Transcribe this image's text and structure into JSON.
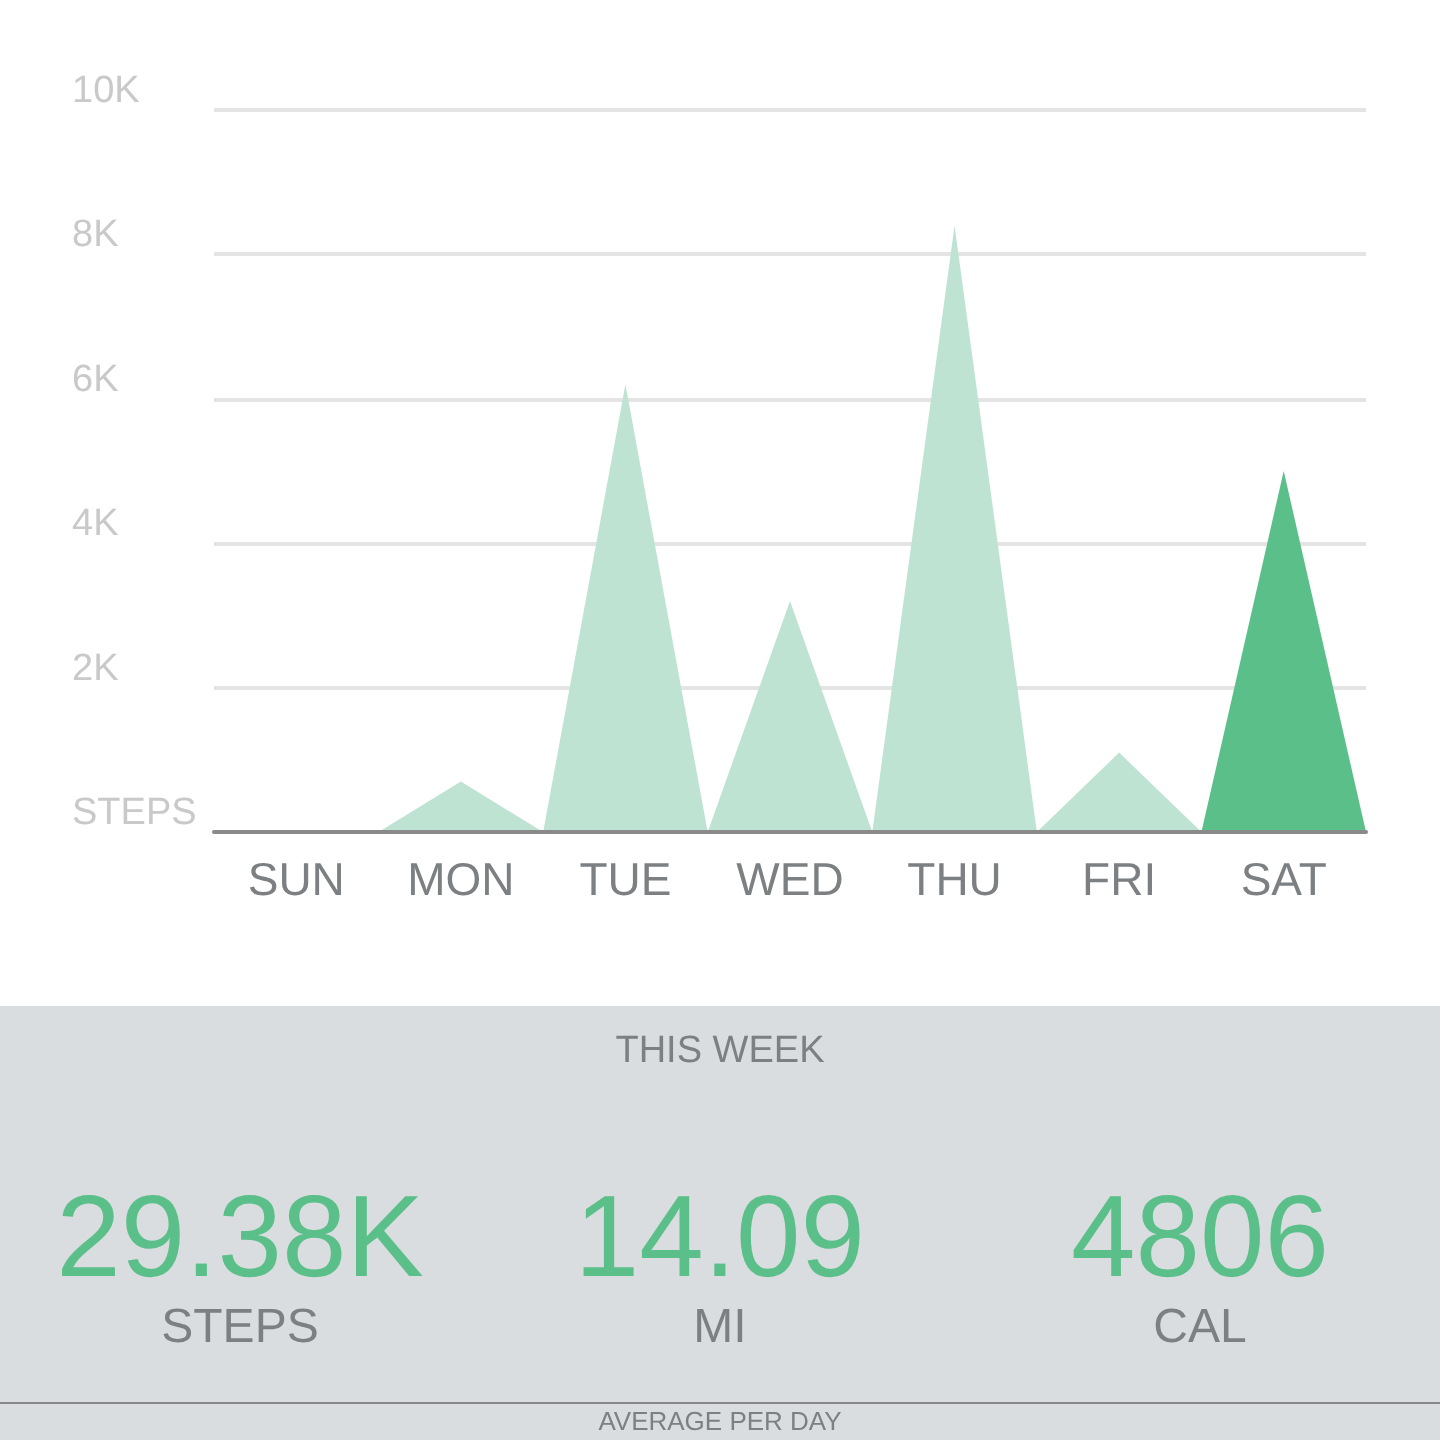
{
  "chart_data": [
    {
      "type": "area",
      "categories": [
        null,
        "SUN",
        null,
        "MON",
        null,
        "TUE",
        null,
        "WED",
        null,
        "THU",
        null,
        "FRI",
        null,
        "SAT",
        null
      ],
      "series": [
        {
          "color": "#bfe3d3",
          "values": [
            0,
            0,
            0,
            700,
            0,
            6200,
            0,
            3200,
            0,
            8400,
            0,
            1100,
            0,
            null,
            null
          ]
        },
        {
          "color": "#5bbf89",
          "values": [
            null,
            null,
            null,
            null,
            null,
            null,
            null,
            null,
            null,
            null,
            null,
            null,
            0,
            5000,
            0
          ]
        }
      ],
      "ylim": [
        0,
        10000
      ],
      "yticks": [
        {
          "value": 0,
          "label": "STEPS"
        },
        {
          "value": 2000,
          "label": "2K"
        },
        {
          "value": 4000,
          "label": "4K"
        },
        {
          "value": 6000,
          "label": "6K"
        },
        {
          "value": 8000,
          "label": "8K"
        },
        {
          "value": 10000,
          "label": "10K"
        }
      ],
      "grid": "y"
    },
    {
      "type": "other",
      "title": "THIS WEEK",
      "annotations": [
        "29.38K",
        "STEPS",
        "14.09",
        "MI",
        "4806",
        "CAL",
        "AVERAGE PER DAY"
      ]
    }
  ]
}
